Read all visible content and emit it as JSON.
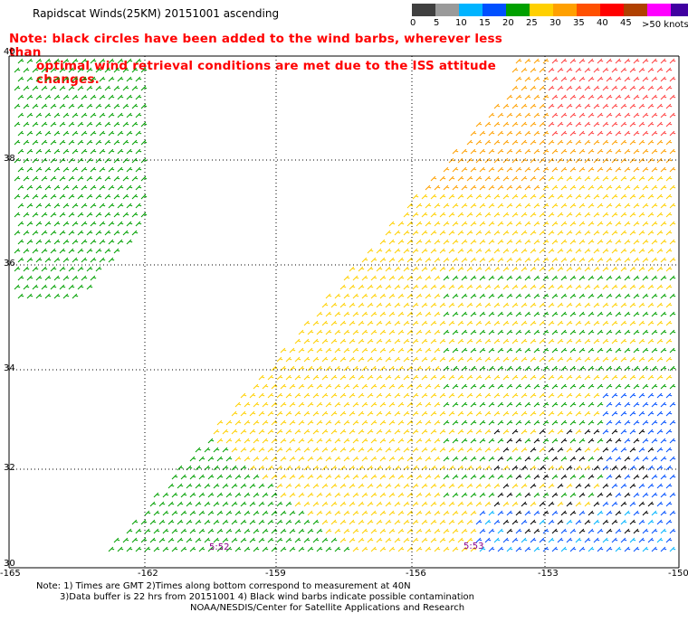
{
  "title": "Rapidscat Winds(25KM) 20151001 ascending",
  "note": {
    "line1": "Note: black circles have been added to the wind barbs, wherever less than",
    "line2": "optimal wind retrieval conditions are met due to the ISS attitude changes."
  },
  "legend": {
    "ticks": [
      "0",
      "5",
      "10",
      "15",
      "20",
      "25",
      "30",
      "35",
      "40",
      "45",
      ">50 knots"
    ],
    "colors": [
      "#404040",
      "#9a9a9a",
      "#00b4ff",
      "#0050ff",
      "#00a000",
      "#ffd000",
      "#ffa000",
      "#ff5000",
      "#ff0000",
      "#b04000",
      "#ff00ff",
      "#4000a0"
    ]
  },
  "y_ticks": [
    "40",
    "38",
    "36",
    "34",
    "32",
    "30"
  ],
  "x_ticks": [
    "-165",
    "-162",
    "-159",
    "-156",
    "-153",
    "-150"
  ],
  "time_labels": [
    "5:52",
    "5:53"
  ],
  "footer": {
    "line1": "Note: 1) Times are GMT 2)Times along bottom correspond to measurement at 40N",
    "line2": "3)Data buffer is 22 hrs from 20151001 4) Black wind barbs indicate possible contamination",
    "line3": "NOAA/NESDIS/Center for Satellite Applications and Research"
  }
}
